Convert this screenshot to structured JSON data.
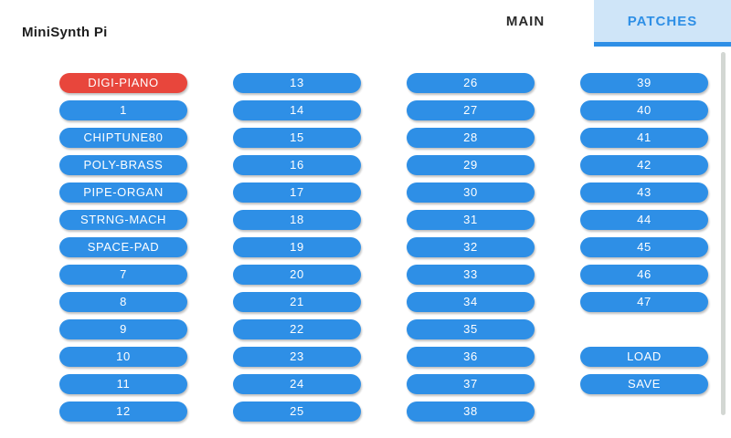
{
  "app": {
    "title": "MiniSynth Pi"
  },
  "tabs": {
    "main": "MAIN",
    "patches": "PATCHES",
    "active": "PATCHES"
  },
  "colors": {
    "accent_blue": "#2e8fe6",
    "selected_red": "#e8463c",
    "active_tab_bg": "#cfe5f8",
    "scrollbar_gray": "#d3d7d3",
    "button_text": "#ffffff"
  },
  "selected_patch": "DIGI-PIANO",
  "patch_columns": [
    [
      "DIGI-PIANO",
      "1",
      "CHIPTUNE80",
      "POLY-BRASS",
      "PIPE-ORGAN",
      "STRNG-MACH",
      "SPACE-PAD",
      "7",
      "8",
      "9",
      "10",
      "11",
      "12"
    ],
    [
      "13",
      "14",
      "15",
      "16",
      "17",
      "18",
      "19",
      "20",
      "21",
      "22",
      "23",
      "24",
      "25"
    ],
    [
      "26",
      "27",
      "28",
      "29",
      "30",
      "31",
      "32",
      "33",
      "34",
      "35",
      "36",
      "37",
      "38"
    ],
    [
      "39",
      "40",
      "41",
      "42",
      "43",
      "44",
      "45",
      "46",
      "47"
    ]
  ],
  "actions": {
    "load": "LOAD",
    "save": "SAVE"
  }
}
